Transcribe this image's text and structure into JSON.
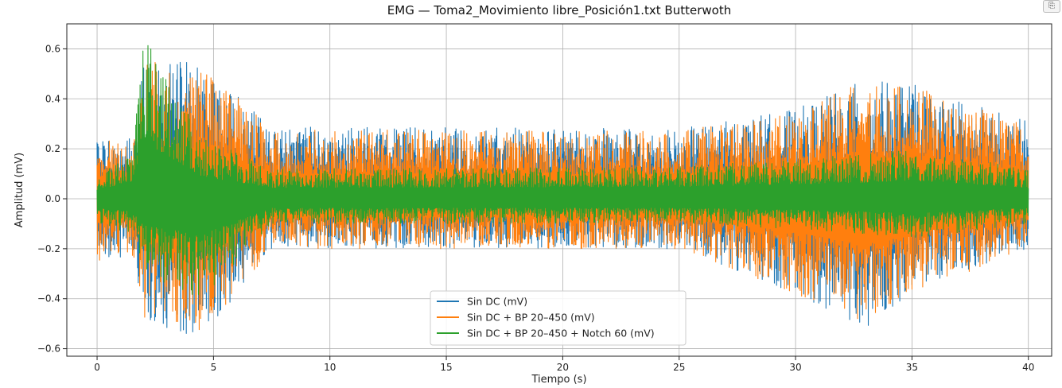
{
  "chart_data": {
    "type": "line",
    "title": "EMG — Toma2_Movimiento libre_Posición1.txt Butterwoth",
    "xlabel": "Tiempo (s)",
    "ylabel": "Amplitud (mV)",
    "xlim": [
      -1.3,
      41.0
    ],
    "ylim": [
      -0.63,
      0.7
    ],
    "xticks": [
      0,
      5,
      10,
      15,
      20,
      25,
      30,
      35,
      40
    ],
    "xtick_labels": [
      "0",
      "5",
      "10",
      "15",
      "20",
      "25",
      "30",
      "35",
      "40"
    ],
    "yticks": [
      -0.6,
      -0.4,
      -0.2,
      0.0,
      0.2,
      0.4,
      0.6
    ],
    "ytick_labels": [
      "−0.6",
      "−0.4",
      "−0.2",
      "0.0",
      "0.2",
      "0.4",
      "0.6"
    ],
    "grid": true,
    "legend_position": "bottom-center",
    "series": [
      {
        "name": "Sin DC (mV)",
        "color": "#1f77b4",
        "envelope": {
          "t": [
            0,
            1.5,
            2.0,
            4.5,
            7.5,
            25,
            30,
            33,
            35,
            40
          ],
          "max": [
            0.26,
            0.24,
            0.55,
            0.55,
            0.29,
            0.28,
            0.36,
            0.48,
            0.46,
            0.31
          ],
          "min": [
            -0.25,
            -0.23,
            -0.48,
            -0.57,
            -0.2,
            -0.2,
            -0.38,
            -0.52,
            -0.38,
            -0.2
          ]
        }
      },
      {
        "name": "Sin DC + BP 20–450 (mV)",
        "color": "#ff7f0e",
        "envelope": {
          "t": [
            0,
            1.5,
            2.0,
            4.5,
            7.5,
            25,
            30,
            33,
            35,
            40
          ],
          "max": [
            0.25,
            0.23,
            0.55,
            0.54,
            0.28,
            0.27,
            0.35,
            0.48,
            0.45,
            0.3
          ],
          "min": [
            -0.25,
            -0.22,
            -0.48,
            -0.56,
            -0.2,
            -0.2,
            -0.38,
            -0.52,
            -0.38,
            -0.2
          ]
        }
      },
      {
        "name": "Sin DC + BP 20–450 + Notch 60 (mV)",
        "color": "#2ca02c",
        "envelope": {
          "t": [
            0,
            1.5,
            2.0,
            4.5,
            7.5,
            25,
            30,
            33,
            35,
            40
          ],
          "max": [
            0.1,
            0.18,
            0.65,
            0.25,
            0.12,
            0.13,
            0.16,
            0.18,
            0.2,
            0.12
          ],
          "min": [
            -0.1,
            -0.14,
            -0.3,
            -0.4,
            -0.1,
            -0.1,
            -0.12,
            -0.14,
            -0.16,
            -0.1
          ]
        }
      }
    ]
  },
  "toolbar": {
    "corner_icon": "⎘"
  }
}
